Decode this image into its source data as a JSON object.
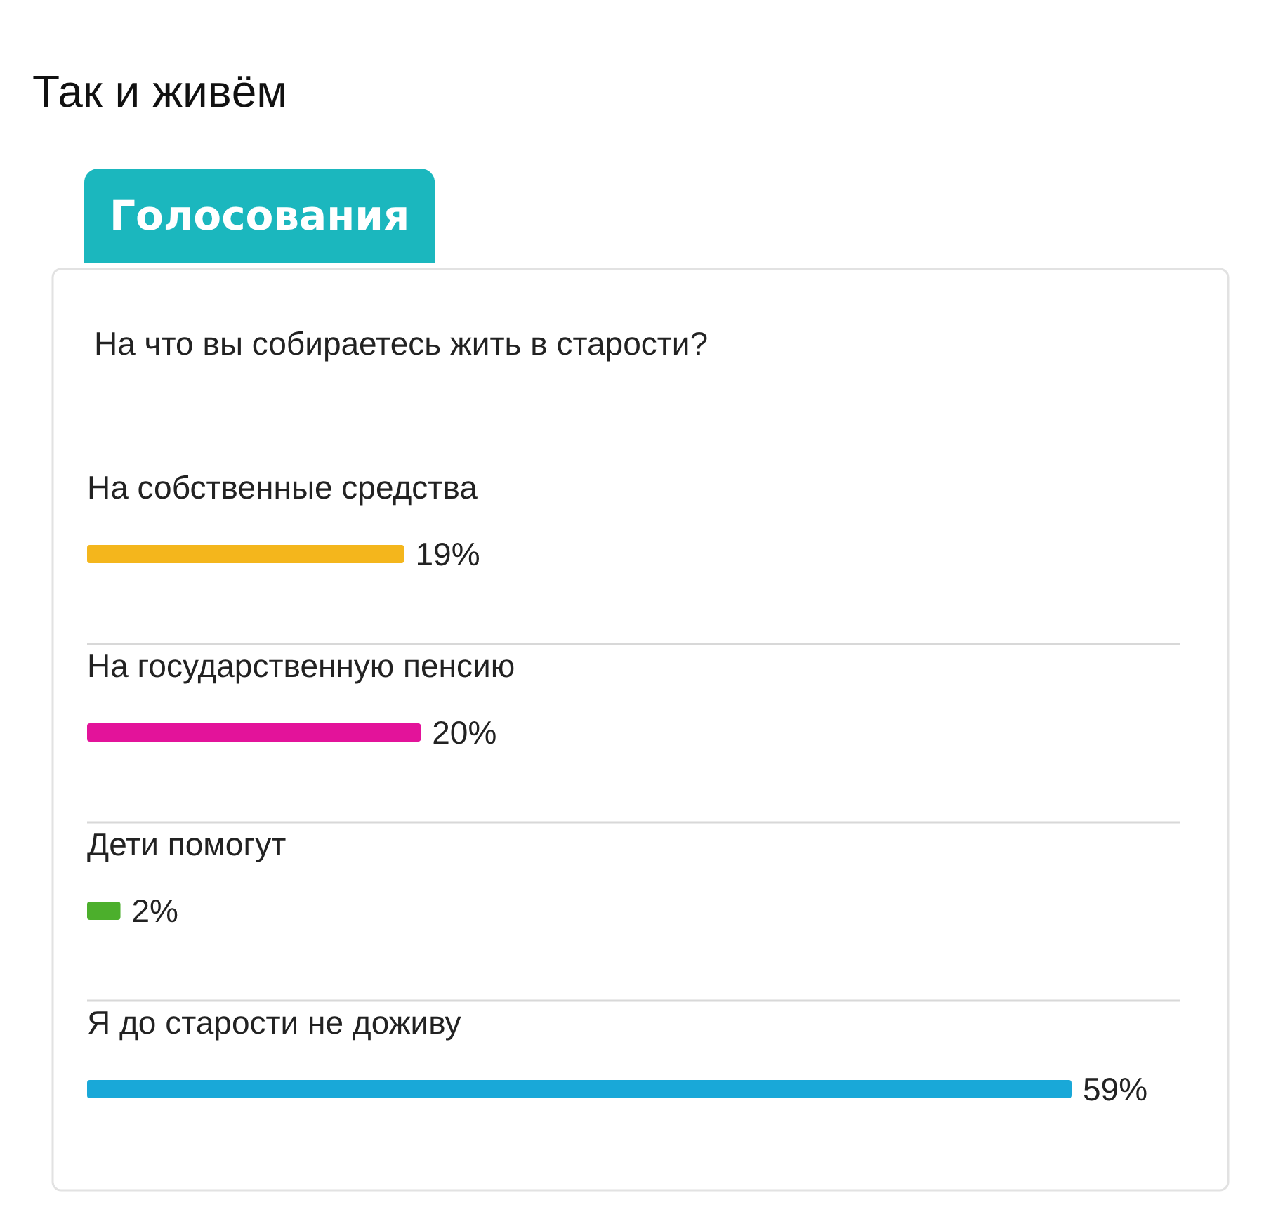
{
  "chart_data": {
    "type": "bar",
    "orientation": "horizontal",
    "title": "Так и живём",
    "subtitle": "На что вы собираетесь жить в старости?",
    "annotations": [
      "Голосования"
    ],
    "categories": [
      "На собственные средства",
      "На государственную пенсию",
      "Дети помогут",
      "Я до старости не доживу"
    ],
    "values": [
      19,
      20,
      2,
      59
    ],
    "colors": [
      "#f4b61c",
      "#e3139a",
      "#4caf2c",
      "#19a8d8"
    ],
    "value_labels": [
      "19%",
      "20%",
      "2%",
      "59%"
    ],
    "grid": "y"
  }
}
